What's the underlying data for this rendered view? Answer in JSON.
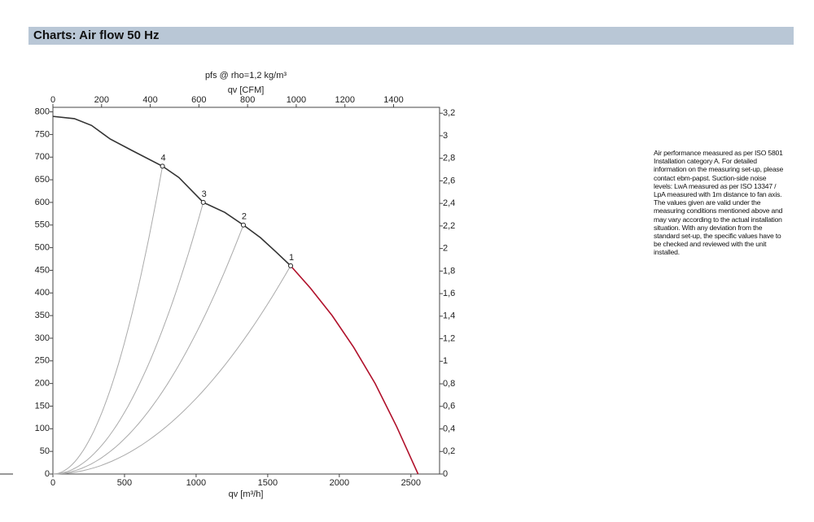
{
  "header": {
    "title": "Charts: Air flow 50 Hz"
  },
  "chart_data": {
    "type": "line",
    "title": "pfs @ rho=1,2 kg/m³",
    "x_label": "qv [m³/h]",
    "x2_label": "qv [CFM]",
    "xlim": [
      0,
      2700
    ],
    "xticks": [
      0,
      500,
      1000,
      1500,
      2000,
      2500
    ],
    "x2lim": [
      0,
      1589
    ],
    "x2ticks": [
      0,
      200,
      400,
      600,
      800,
      1000,
      1200,
      1400
    ],
    "ylim": [
      0,
      810
    ],
    "yticks": [
      0,
      50,
      100,
      150,
      200,
      250,
      300,
      350,
      400,
      450,
      500,
      550,
      600,
      650,
      700,
      750,
      800
    ],
    "y2lim": [
      0,
      3.252
    ],
    "y2ticks": [
      0,
      {
        "value": 0.2,
        "label": "0,2"
      },
      {
        "value": 0.4,
        "label": "0,4"
      },
      {
        "value": 0.6,
        "label": "0,6"
      },
      {
        "value": 0.8,
        "label": "0,8"
      },
      1,
      {
        "value": 1.2,
        "label": "1,2"
      },
      {
        "value": 1.4,
        "label": "1,4"
      },
      {
        "value": 1.6,
        "label": "1,6"
      },
      {
        "value": 1.8,
        "label": "1,8"
      },
      2,
      {
        "value": 2.2,
        "label": "2,2"
      },
      {
        "value": 2.4,
        "label": "2,4"
      },
      {
        "value": 2.6,
        "label": "2,6"
      },
      {
        "value": 2.8,
        "label": "2,8"
      },
      3,
      {
        "value": 3.2,
        "label": "3,2"
      }
    ],
    "series": [
      {
        "color": "#333333",
        "x": [
          0,
          150,
          270,
          400,
          550,
          765,
          880,
          1050,
          1200,
          1330,
          1450,
          1560,
          1660
        ],
        "values": [
          790,
          785,
          770,
          740,
          715,
          680,
          655,
          600,
          578,
          550,
          522,
          490,
          460
        ]
      },
      {
        "color": "#b0102a",
        "x": [
          1660,
          1800,
          1950,
          2100,
          2250,
          2400,
          2550
        ],
        "values": [
          460,
          410,
          350,
          280,
          200,
          105,
          0
        ]
      }
    ],
    "points": [
      {
        "label": "1",
        "x": 1660,
        "y": 460
      },
      {
        "label": "2",
        "x": 1330,
        "y": 550
      },
      {
        "label": "3",
        "x": 1050,
        "y": 600
      },
      {
        "label": "4",
        "x": 765,
        "y": 680
      }
    ]
  },
  "note": [
    "Air performance measured as per ISO 5801",
    "Installation category A. For detailed",
    "information on the measuring set-up, please",
    "contact ebm-papst. Suction-side noise",
    "levels: LwA measured as per ISO 13347 /",
    "LpA measured with 1m distance to fan axis.",
    "The values given are valid under the",
    "measuring conditions mentioned above and",
    "may vary according to the actual installation",
    "situation. With any deviation from the",
    "standard set-up, the specific values have to",
    "be checked and reviewed with the unit",
    "installed."
  ]
}
